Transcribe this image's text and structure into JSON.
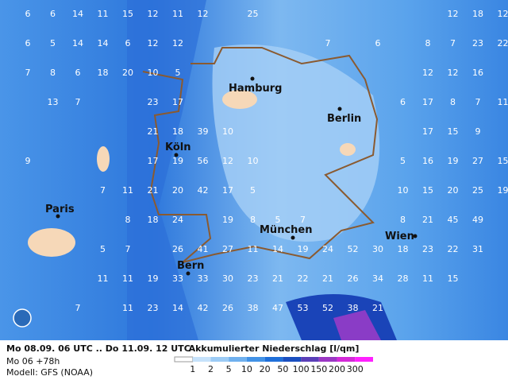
{
  "grid": [
    [
      6,
      6,
      14,
      11,
      15,
      12,
      11,
      12,
      null,
      25,
      null,
      null,
      null,
      null,
      null,
      null,
      null,
      12,
      18,
      12
    ],
    [
      6,
      5,
      14,
      14,
      6,
      12,
      12,
      null,
      null,
      null,
      null,
      null,
      7,
      null,
      6,
      null,
      8,
      7,
      23,
      22
    ],
    [
      7,
      8,
      6,
      18,
      20,
      10,
      5,
      null,
      null,
      null,
      null,
      null,
      null,
      null,
      null,
      null,
      12,
      12,
      16,
      null
    ],
    [
      null,
      13,
      7,
      null,
      null,
      23,
      17,
      null,
      null,
      null,
      null,
      null,
      null,
      null,
      null,
      6,
      17,
      8,
      7,
      11
    ],
    [
      null,
      null,
      null,
      null,
      null,
      21,
      18,
      39,
      10,
      null,
      null,
      null,
      null,
      null,
      null,
      null,
      17,
      15,
      9,
      null
    ],
    [
      9,
      null,
      null,
      null,
      null,
      17,
      19,
      56,
      12,
      10,
      null,
      null,
      null,
      null,
      null,
      5,
      16,
      19,
      27,
      15
    ],
    [
      null,
      null,
      null,
      7,
      11,
      21,
      20,
      42,
      17,
      5,
      null,
      null,
      null,
      null,
      null,
      10,
      15,
      20,
      25,
      19
    ],
    [
      null,
      null,
      null,
      null,
      8,
      18,
      24,
      null,
      19,
      8,
      5,
      7,
      null,
      null,
      null,
      8,
      21,
      45,
      49,
      null
    ],
    [
      null,
      null,
      null,
      5,
      7,
      null,
      26,
      41,
      27,
      11,
      14,
      19,
      24,
      52,
      30,
      18,
      23,
      22,
      31,
      null
    ],
    [
      null,
      null,
      null,
      11,
      11,
      19,
      33,
      33,
      30,
      23,
      21,
      22,
      21,
      26,
      34,
      28,
      11,
      15,
      null,
      null
    ],
    [
      null,
      null,
      7,
      null,
      11,
      23,
      14,
      42,
      26,
      38,
      47,
      53,
      52,
      38,
      21,
      null,
      null,
      null,
      null,
      null
    ]
  ],
  "cities": [
    {
      "name": "Hamburg"
    },
    {
      "name": "Berlin"
    },
    {
      "name": "Köln"
    },
    {
      "name": "Paris"
    },
    {
      "name": "München"
    },
    {
      "name": "Wien"
    },
    {
      "name": "Bern"
    }
  ],
  "footer": {
    "period": "Mo 08.09. 06 UTC .. Do 11.09. 12 UTC",
    "step": "Mo 06 +78h",
    "model": "Modell: GFS (NOAA)",
    "title": "Akkumulierter Niederschlag [l/qm]"
  },
  "legend": {
    "labels": [
      "1",
      "2",
      "5",
      "10",
      "20",
      "50",
      "100",
      "150",
      "200",
      "300"
    ],
    "colors": [
      "#ffffff",
      "#c6e2fb",
      "#9ccbf5",
      "#6fb0ee",
      "#4292e6",
      "#1f6fd9",
      "#1a4fc0",
      "#5a3fb8",
      "#9b37c4",
      "#d42ad8",
      "#ff20ff"
    ]
  }
}
